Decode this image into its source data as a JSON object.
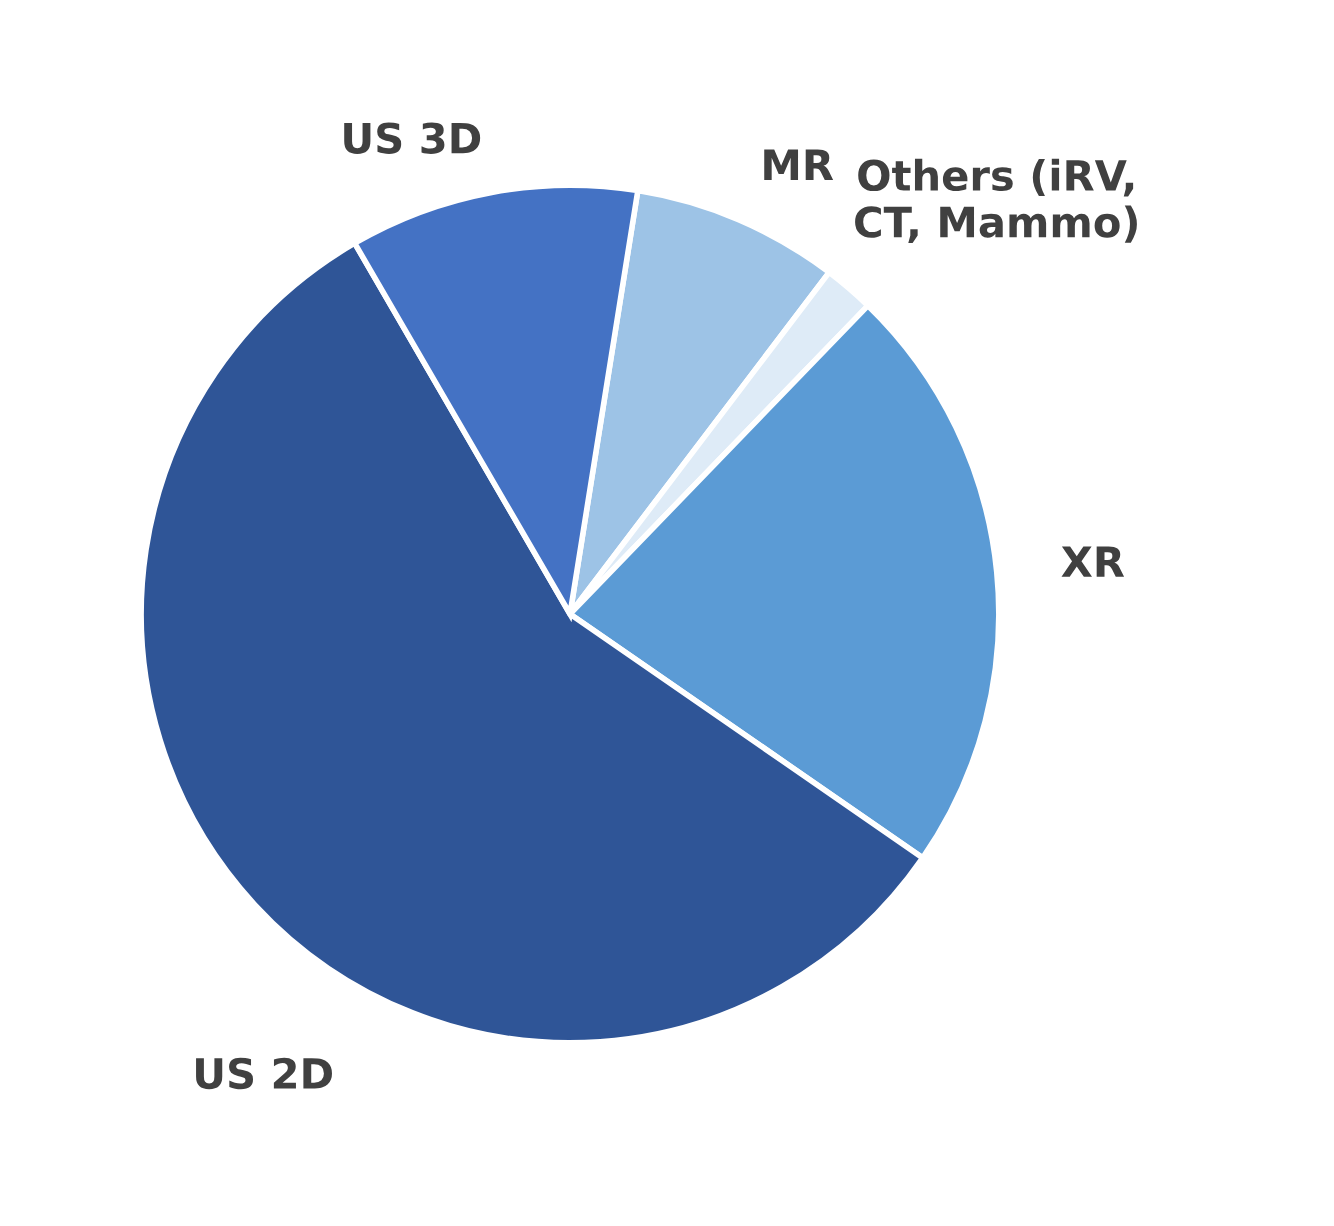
{
  "chart_data": {
    "type": "pie",
    "categories": [
      "MR",
      "Others (iRV,\nCT, Mammo)",
      "XR",
      "US 2D",
      "US 3D"
    ],
    "values": [
      7.8,
      1.9,
      22.4,
      57.0,
      10.9
    ],
    "colors": [
      "#9dc3e6",
      "#deebf7",
      "#5b9bd5",
      "#2f5597",
      "#4472c4"
    ],
    "legend": false
  }
}
